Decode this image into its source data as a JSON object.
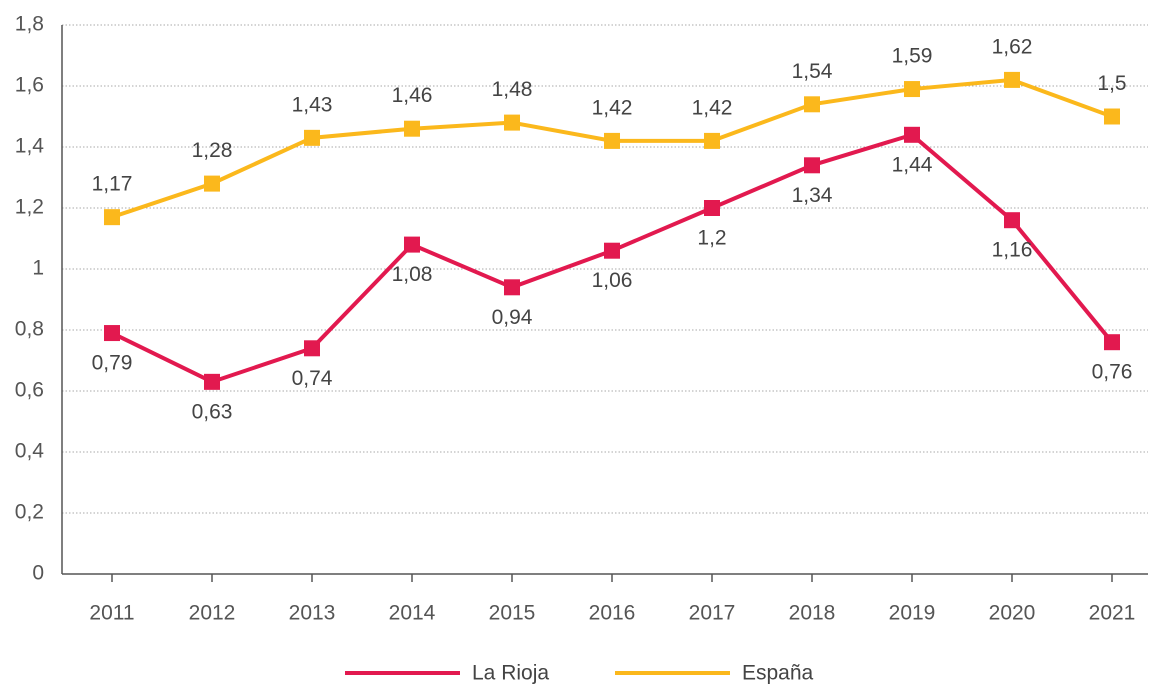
{
  "chart_data": {
    "type": "line",
    "categories": [
      "2011",
      "2012",
      "2013",
      "2014",
      "2015",
      "2016",
      "2017",
      "2018",
      "2019",
      "2020",
      "2021"
    ],
    "series": [
      {
        "name": "La Rioja",
        "color": "#e2194f",
        "label_side": "below",
        "values": [
          0.79,
          0.63,
          0.74,
          1.08,
          0.94,
          1.06,
          1.2,
          1.34,
          1.44,
          1.16,
          0.76
        ],
        "value_labels": [
          "0,79",
          "0,63",
          "0,74",
          "1,08",
          "0,94",
          "1,06",
          "1,2",
          "1,34",
          "1,44",
          "1,16",
          "0,76"
        ]
      },
      {
        "name": "España",
        "color": "#fbb81c",
        "label_side": "above",
        "values": [
          1.17,
          1.28,
          1.43,
          1.46,
          1.48,
          1.42,
          1.42,
          1.54,
          1.59,
          1.62,
          1.5
        ],
        "value_labels": [
          "1,17",
          "1,28",
          "1,43",
          "1,46",
          "1,48",
          "1,42",
          "1,42",
          "1,54",
          "1,59",
          "1,62",
          "1,5"
        ]
      }
    ],
    "ylim": [
      0,
      1.8
    ],
    "yticks": [
      0,
      {
        "value": 0.2,
        "label": "0,2"
      },
      {
        "value": 0.4,
        "label": "0,4"
      },
      {
        "value": 0.6,
        "label": "0,6"
      },
      {
        "value": 0.8,
        "label": "0,8"
      },
      1,
      {
        "value": 1.2,
        "label": "1,2"
      },
      {
        "value": 1.4,
        "label": "1,4"
      },
      {
        "value": 1.6,
        "label": "1,6"
      },
      {
        "value": 1.8,
        "label": "1,8"
      }
    ],
    "grid": true,
    "legend": "bottom"
  }
}
